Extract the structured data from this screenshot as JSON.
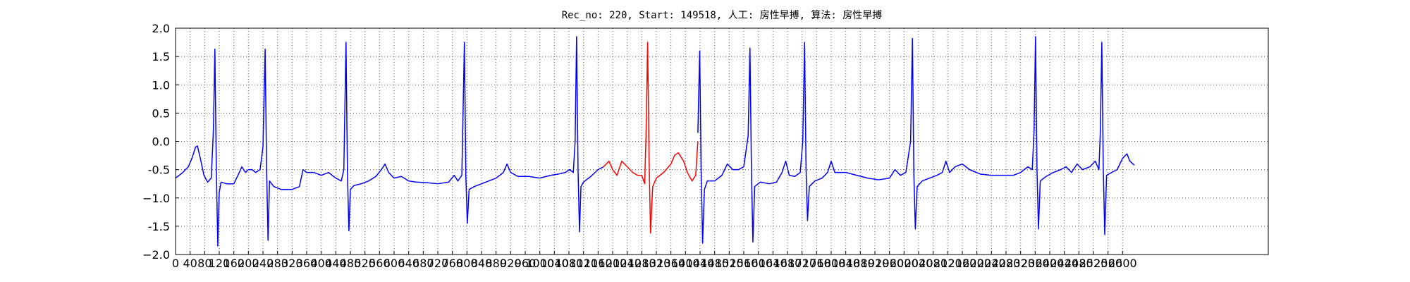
{
  "chart_data": {
    "type": "line",
    "title": "Rec_no: 220, Start: 149518, 人工: 房性早搏, 算法: 房性早搏",
    "xlim": [
      0,
      3000
    ],
    "ylim": [
      -2.0,
      2.0
    ],
    "xticks": [
      0,
      40,
      80,
      120,
      160,
      200,
      240,
      280,
      320,
      360,
      400,
      440,
      480,
      520,
      560,
      600,
      640,
      680,
      720,
      760,
      800,
      840,
      880,
      920,
      960,
      1000,
      1040,
      1080,
      1120,
      1160,
      1200,
      1240,
      1280,
      1320,
      1360,
      1400,
      1440,
      1480,
      1520,
      1560,
      1600,
      1640,
      1680,
      1720,
      1760,
      1800,
      1840,
      1880,
      1920,
      1960,
      2000,
      2040,
      2080,
      2120,
      2160,
      2200,
      2240,
      2280,
      2320,
      2360,
      2400,
      2440,
      2480,
      2520,
      2560,
      2600
    ],
    "yticks": [
      {
        "value": -2,
        "label": "−2.0"
      },
      -1.5,
      {
        "value": -1,
        "label": "−1.0"
      },
      -0.5,
      {
        "value": 0,
        "label": "0.0"
      },
      0.5,
      {
        "value": 1,
        "label": "1.0"
      },
      1.5,
      {
        "value": 2,
        "label": "2.0"
      }
    ],
    "grid": true,
    "series": [
      {
        "color": "#0000ff",
        "x": [
          0,
          20,
          35,
          45,
          55,
          60,
          68,
          78,
          88,
          98,
          104,
          108,
          112,
          116,
          120,
          125,
          140,
          160,
          175,
          182,
          192,
          200,
          210,
          220,
          232,
          240,
          246,
          250,
          254,
          258,
          270,
          290,
          320,
          340,
          350,
          360,
          380,
          400,
          420,
          440,
          455,
          462,
          468,
          472,
          476,
          480,
          490,
          510,
          530,
          550,
          565,
          575,
          585,
          600,
          620,
          640,
          660,
          690,
          720,
          750,
          765,
          775,
          786,
          793,
          797,
          801,
          806,
          820,
          840,
          860,
          880,
          900,
          910,
          920,
          940,
          970,
          1000,
          1030,
          1050,
          1070,
          1082,
          1092,
          1097,
          1101,
          1105,
          1109,
          1113,
          1120,
          1140,
          1160,
          1175,
          1300,
          1434,
          1439,
          1443,
          1447,
          1452,
          1460,
          1480,
          1500,
          1515,
          1530,
          1545,
          1560,
          1572,
          1577,
          1581,
          1585,
          1590,
          1605,
          1630,
          1650,
          1665,
          1675,
          1685,
          1700,
          1715,
          1722,
          1727,
          1731,
          1735,
          1740,
          1755,
          1775,
          1790,
          1800,
          1810,
          1840,
          1870,
          1900,
          1930,
          1960,
          1975,
          1990,
          2005,
          2018,
          2023,
          2027,
          2031,
          2036,
          2050,
          2070,
          2090,
          2105,
          2115,
          2125,
          2140,
          2160,
          2180,
          2210,
          2240,
          2270,
          2300,
          2320,
          2340,
          2352,
          2357,
          2361,
          2365,
          2369,
          2374,
          2390,
          2410,
          2430,
          2445,
          2460,
          2475,
          2490,
          2510,
          2525,
          2535,
          2539,
          2543,
          2547,
          2551,
          2556,
          2570,
          2585,
          2600,
          2612,
          2620,
          2632
        ],
        "values": [
          -0.65,
          -0.55,
          -0.45,
          -0.3,
          -0.1,
          -0.08,
          -0.3,
          -0.6,
          -0.72,
          -0.65,
          0.2,
          1.63,
          -0.5,
          -1.85,
          -0.9,
          -0.72,
          -0.75,
          -0.75,
          -0.55,
          -0.45,
          -0.55,
          -0.5,
          -0.5,
          -0.55,
          -0.5,
          -0.1,
          1.63,
          -0.5,
          -1.75,
          -0.7,
          -0.8,
          -0.85,
          -0.85,
          -0.8,
          -0.5,
          -0.55,
          -0.55,
          -0.6,
          -0.55,
          -0.65,
          -0.7,
          -0.5,
          1.75,
          -0.6,
          -1.58,
          -0.85,
          -0.78,
          -0.75,
          -0.7,
          -0.62,
          -0.5,
          -0.4,
          -0.55,
          -0.65,
          -0.62,
          -0.7,
          -0.72,
          -0.73,
          -0.75,
          -0.72,
          -0.6,
          -0.7,
          -0.6,
          1.75,
          -0.6,
          -1.45,
          -0.85,
          -0.8,
          -0.75,
          -0.7,
          -0.65,
          -0.55,
          -0.4,
          -0.55,
          -0.62,
          -0.62,
          -0.65,
          -0.6,
          -0.58,
          -0.55,
          -0.5,
          -0.55,
          0.0,
          1.85,
          -0.5,
          -1.6,
          -0.8,
          -0.72,
          -0.62,
          -0.5,
          -0.45,
          null,
          0.15,
          1.6,
          -0.5,
          -1.8,
          -0.85,
          -0.7,
          -0.7,
          -0.6,
          -0.4,
          -0.5,
          -0.5,
          -0.45,
          0.1,
          1.65,
          -0.5,
          -1.78,
          -0.8,
          -0.72,
          -0.75,
          -0.72,
          -0.55,
          -0.35,
          -0.6,
          -0.62,
          -0.55,
          0.0,
          1.75,
          -0.5,
          -1.4,
          -0.8,
          -0.7,
          -0.65,
          -0.55,
          -0.35,
          -0.55,
          -0.55,
          -0.6,
          -0.65,
          -0.68,
          -0.65,
          -0.5,
          -0.6,
          -0.55,
          0.0,
          1.82,
          -0.6,
          -1.55,
          -0.8,
          -0.7,
          -0.65,
          -0.6,
          -0.55,
          -0.35,
          -0.55,
          -0.45,
          -0.4,
          -0.5,
          -0.58,
          -0.6,
          -0.6,
          -0.6,
          -0.55,
          -0.45,
          -0.5,
          0.2,
          1.85,
          -0.5,
          -1.55,
          -0.7,
          -0.62,
          -0.55,
          -0.5,
          -0.45,
          -0.55,
          -0.4,
          -0.5,
          -0.45,
          -0.35,
          -0.5,
          0.2,
          1.75,
          -0.5,
          -1.65,
          -0.6,
          -0.55,
          -0.5,
          -0.3,
          -0.22,
          -0.35,
          -0.42
        ]
      },
      {
        "color": "#ff0000",
        "x": [
          1175,
          1190,
          1200,
          1212,
          1225,
          1240,
          1255,
          1268,
          1280,
          1288,
          1292,
          1296,
          1300,
          1304,
          1310,
          1320,
          1340,
          1360,
          1370,
          1380,
          1395,
          1405,
          1418,
          1428,
          1434
        ],
        "values": [
          -0.45,
          -0.35,
          -0.5,
          -0.6,
          -0.35,
          -0.45,
          -0.55,
          -0.6,
          -0.6,
          -0.75,
          0.2,
          1.75,
          -0.3,
          -1.62,
          -0.8,
          -0.65,
          -0.55,
          -0.4,
          -0.25,
          -0.2,
          -0.35,
          -0.55,
          -0.7,
          -0.6,
          0.0
        ]
      }
    ]
  }
}
